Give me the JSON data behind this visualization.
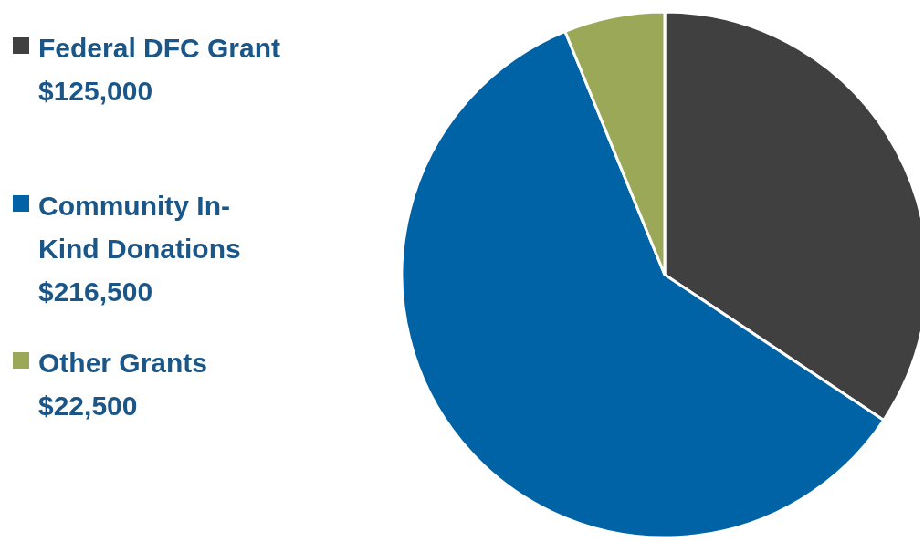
{
  "chart_data": {
    "type": "pie",
    "categories": [
      "Federal DFC Grant",
      "Community In-Kind Donations",
      "Other Grants"
    ],
    "values": [
      125000,
      216500,
      22500
    ],
    "colors": [
      "#404040",
      "#0063a6",
      "#9aa857"
    ],
    "value_labels": [
      "$125,000",
      "$216,500",
      "$22,500"
    ],
    "legend": "left"
  }
}
